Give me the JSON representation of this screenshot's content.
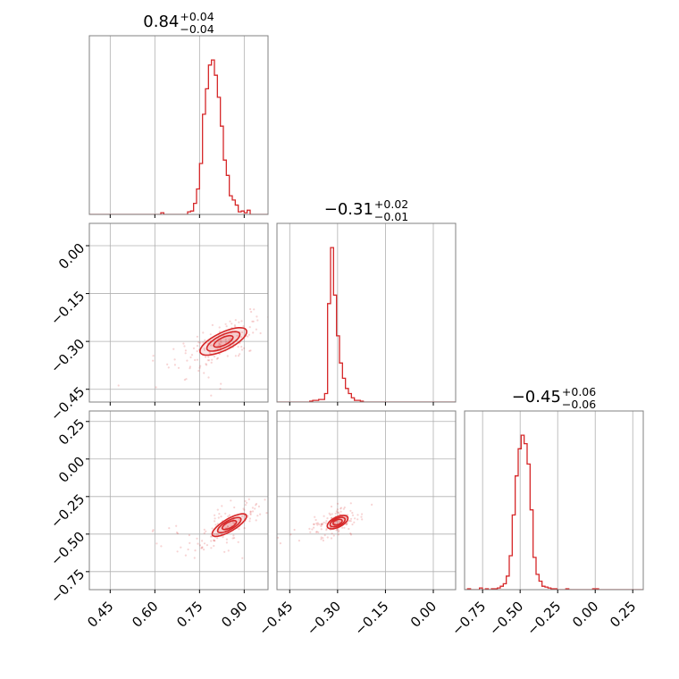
{
  "chart_data": {
    "type": "corner",
    "colors": {
      "line": "#d62728",
      "grid": "#b0b0b0",
      "frame": "#808080"
    },
    "titles": [
      {
        "value": "0.84",
        "plus": "+0.04",
        "minus": "−0.04"
      },
      {
        "value": "−0.31",
        "plus": "+0.02",
        "minus": "−0.01"
      },
      {
        "value": "−0.45",
        "plus": "+0.06",
        "minus": "−0.06"
      }
    ],
    "axes": [
      {
        "range": [
          0.38,
          0.98
        ],
        "ticks": [
          0.45,
          0.6,
          0.75,
          0.9
        ],
        "tick_labels": [
          "0.45",
          "0.60",
          "0.75",
          "0.90"
        ]
      },
      {
        "range": [
          -0.49,
          0.07
        ],
        "ticks": [
          -0.45,
          -0.3,
          -0.15,
          0.0
        ],
        "tick_labels": [
          "−0.45",
          "−0.30",
          "−0.15",
          "0.00"
        ]
      },
      {
        "range": [
          -0.87,
          0.32
        ],
        "ticks": [
          -0.75,
          -0.5,
          -0.25,
          0.0,
          0.25
        ],
        "tick_labels": [
          "−0.75",
          "−0.50",
          "−0.25",
          "0.00",
          "0.25"
        ]
      }
    ],
    "histograms": [
      {
        "bins": [
          0.38,
          0.98
        ],
        "ymax": 1.0,
        "counts": [
          0,
          0,
          0,
          0,
          0,
          0,
          0,
          0,
          0,
          0,
          0,
          0,
          0,
          0,
          0,
          0,
          0,
          0,
          0,
          0,
          0,
          0,
          0,
          0,
          0.01,
          0,
          0,
          0,
          0,
          0,
          0,
          0,
          0,
          0.015,
          0.02,
          0.065,
          0.15,
          0.3,
          0.59,
          0.74,
          0.88,
          0.91,
          0.82,
          0.69,
          0.52,
          0.32,
          0.23,
          0.11,
          0.085,
          0.055,
          0.015,
          0.02,
          0.01,
          0.025,
          0,
          0,
          0,
          0,
          0,
          0
        ]
      },
      {
        "bins": [
          -0.49,
          0.07
        ],
        "ymax": 1.0,
        "counts": [
          0,
          0,
          0,
          0,
          0,
          0,
          0,
          0,
          0,
          0,
          0,
          0.005,
          0.01,
          0.01,
          0.015,
          0.015,
          0.05,
          0.58,
          0.91,
          0.63,
          0.39,
          0.23,
          0.14,
          0.08,
          0.05,
          0.025,
          0.01,
          0.01,
          0.005,
          0,
          0,
          0,
          0,
          0,
          0,
          0,
          0,
          0,
          0,
          0,
          0,
          0,
          0,
          0,
          0,
          0,
          0,
          0,
          0,
          0,
          0,
          0,
          0,
          0,
          0,
          0,
          0,
          0,
          0,
          0
        ]
      },
      {
        "bins": [
          -0.87,
          0.32
        ],
        "ymax": 1.0,
        "counts": [
          0,
          0.005,
          0,
          0,
          0,
          0.01,
          0,
          0.005,
          0,
          0.005,
          0.005,
          0.01,
          0.02,
          0.035,
          0.08,
          0.2,
          0.44,
          0.67,
          0.83,
          0.91,
          0.86,
          0.74,
          0.47,
          0.19,
          0.09,
          0.05,
          0.02,
          0.015,
          0.01,
          0.005,
          0.005,
          0,
          0,
          0,
          0.005,
          0,
          0,
          0,
          0,
          0,
          0,
          0,
          0,
          0.005,
          0.005,
          0,
          0,
          0,
          0,
          0,
          0,
          0,
          0,
          0,
          0,
          0,
          0,
          0,
          0,
          0
        ]
      }
    ],
    "contours": [
      {
        "x": 0,
        "y": 1,
        "center": [
          0.83,
          -0.3
        ],
        "ellipses": [
          [
            0.035,
            0.012,
            0.42
          ],
          [
            0.06,
            0.02,
            0.42
          ],
          [
            0.085,
            0.028,
            0.42
          ]
        ]
      },
      {
        "x": 0,
        "y": 2,
        "center": [
          0.85,
          -0.44
        ],
        "ellipses": [
          [
            0.035,
            0.015,
            0.95
          ],
          [
            0.06,
            0.022,
            0.95
          ],
          [
            0.09,
            0.03,
            0.95
          ]
        ]
      },
      {
        "x": 1,
        "y": 2,
        "center": [
          -0.3,
          -0.42
        ],
        "ellipses": [
          [
            0.02,
            0.012,
            1.05
          ],
          [
            0.035,
            0.018,
            1.05
          ],
          [
            0.05,
            0.024,
            1.05
          ]
        ]
      }
    ],
    "grid": true
  }
}
